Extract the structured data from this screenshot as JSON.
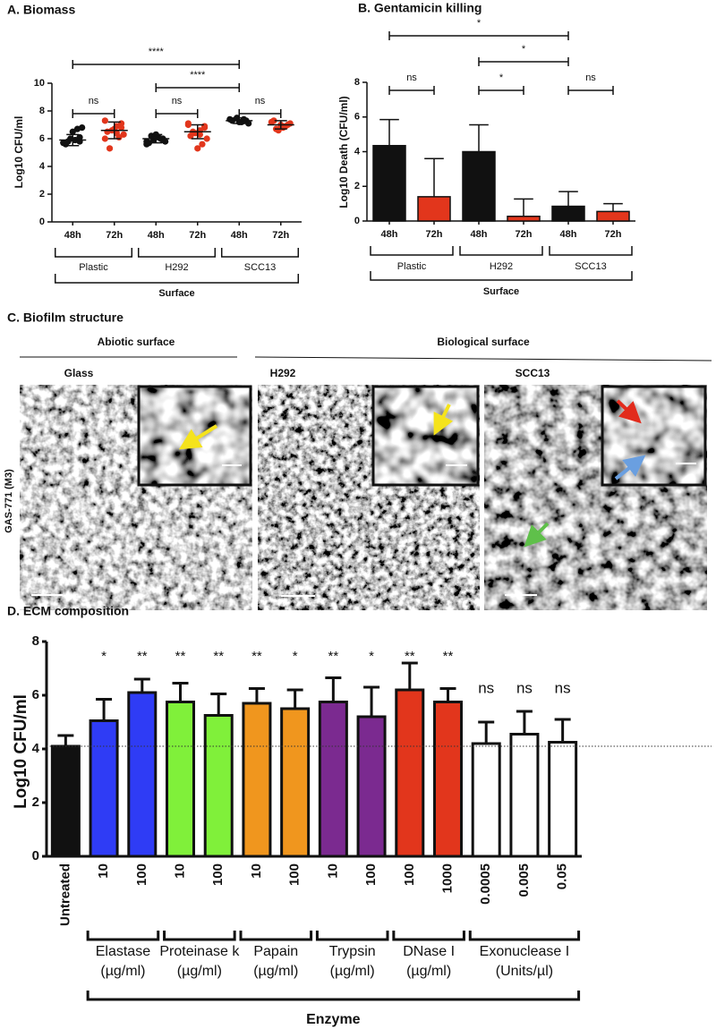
{
  "chart_data": [
    {
      "type": "dot",
      "title": "A. Biomass",
      "y_label": "Log10 CFU/ml",
      "categories": [
        "48h",
        "72h",
        "48h",
        "72h",
        "48h",
        "72h"
      ],
      "points": [
        [
          5.7,
          5.8,
          5.9,
          6.0,
          5.6,
          6.8,
          6.7,
          6.5,
          5.8,
          5.7,
          6.1,
          5.9
        ],
        [
          7.3,
          7.1,
          6.9,
          6.6,
          6.5,
          6.3,
          6.1,
          6.7,
          5.3,
          6.0,
          6.8,
          6.4
        ],
        [
          5.8,
          6.0,
          6.1,
          5.9,
          5.7,
          5.8,
          6.0,
          6.3,
          6.2,
          5.6,
          5.9
        ],
        [
          7.0,
          6.8,
          6.6,
          6.4,
          6.2,
          6.0,
          5.6,
          5.3,
          6.5,
          7.1,
          6.9,
          6.3
        ],
        [
          7.4,
          7.3,
          7.2,
          7.5,
          7.3,
          7.1,
          7.4,
          7.2
        ],
        [
          7.2,
          7.0,
          6.8,
          6.6,
          7.3,
          7.1,
          6.9,
          7.0,
          6.7
        ]
      ],
      "means": [
        5.9,
        6.6,
        6.0,
        6.5,
        7.3,
        7.0
      ],
      "sd": [
        0.4,
        0.6,
        0.3,
        0.5,
        0.2,
        0.3
      ],
      "colors": [
        "#111111",
        "#e2361c",
        "#111111",
        "#e2361c",
        "#111111",
        "#e2361c"
      ],
      "ylim": [
        0,
        10
      ],
      "yticks": [
        0,
        2,
        4,
        6,
        8,
        10
      ],
      "groups": [
        {
          "label": "Plastic",
          "from": 0,
          "to": 1
        },
        {
          "label": "H292",
          "from": 2,
          "to": 3
        },
        {
          "label": "SCC13",
          "from": 4,
          "to": 5
        }
      ],
      "group_label": "Surface",
      "comparisons": [
        {
          "from": 0,
          "to": 1,
          "label": "ns"
        },
        {
          "from": 2,
          "to": 3,
          "label": "ns"
        },
        {
          "from": 4,
          "to": 5,
          "label": "ns"
        },
        {
          "from": 2,
          "to": 4,
          "label": "****"
        },
        {
          "from": 0,
          "to": 4,
          "label": "****"
        }
      ]
    },
    {
      "type": "bar",
      "title": "B. Gentamicin killing",
      "y_label": "Log10 Death (CFU/ml)",
      "categories": [
        "48h",
        "72h",
        "48h",
        "72h",
        "48h",
        "72h"
      ],
      "values": [
        4.35,
        1.4,
        4.0,
        0.27,
        0.85,
        0.55
      ],
      "errors": [
        1.5,
        2.2,
        1.55,
        1.0,
        0.85,
        0.45
      ],
      "colors": [
        "#111111",
        "#e2361c",
        "#111111",
        "#e2361c",
        "#111111",
        "#e2361c"
      ],
      "ylim": [
        0,
        8
      ],
      "yticks": [
        0,
        2,
        4,
        6,
        8
      ],
      "groups": [
        {
          "label": "Plastic",
          "from": 0,
          "to": 1
        },
        {
          "label": "H292",
          "from": 2,
          "to": 3
        },
        {
          "label": "SCC13",
          "from": 4,
          "to": 5
        }
      ],
      "group_label": "Surface",
      "comparisons": [
        {
          "from": 0,
          "to": 1,
          "label": "ns"
        },
        {
          "from": 2,
          "to": 3,
          "label": "*"
        },
        {
          "from": 4,
          "to": 5,
          "label": "ns"
        },
        {
          "from": 2,
          "to": 4,
          "label": "*"
        },
        {
          "from": 0,
          "to": 4,
          "label": "*"
        }
      ]
    },
    {
      "type": "bar",
      "title": "D. ECM composition",
      "y_label": "Log10 CFU/ml",
      "categories": [
        "Untreated",
        "10",
        "100",
        "10",
        "100",
        "10",
        "100",
        "10",
        "100",
        "100",
        "1000",
        "0.0005",
        "0.005",
        "0.05"
      ],
      "values": [
        4.1,
        5.05,
        6.1,
        5.75,
        5.25,
        5.7,
        5.5,
        5.75,
        5.2,
        6.2,
        5.75,
        4.2,
        4.55,
        4.25
      ],
      "errors": [
        0.4,
        0.8,
        0.5,
        0.7,
        0.8,
        0.55,
        0.7,
        0.9,
        1.1,
        1.0,
        0.5,
        0.8,
        0.85,
        0.85
      ],
      "colors": [
        "#111111",
        "#2f3cf5",
        "#2f3cf5",
        "#80f03a",
        "#80f03a",
        "#f0961e",
        "#f0961e",
        "#7b2a90",
        "#7b2a90",
        "#e2361c",
        "#e2361c",
        "#ffffff",
        "#ffffff",
        "#ffffff"
      ],
      "significance": [
        null,
        "*",
        "**",
        "**",
        "**",
        "**",
        "*",
        "**",
        "*",
        "**",
        "**",
        "ns",
        "ns",
        "ns"
      ],
      "reference_line": true,
      "ylim": [
        0,
        8
      ],
      "yticks": [
        0,
        2,
        4,
        6,
        8
      ],
      "groups": [
        {
          "label": "Elastase",
          "unit": "(µg/ml)",
          "from": 1,
          "to": 2
        },
        {
          "label": "Proteinase k",
          "unit": "(µg/ml)",
          "from": 3,
          "to": 4
        },
        {
          "label": "Papain",
          "unit": "(µg/ml)",
          "from": 5,
          "to": 6
        },
        {
          "label": "Trypsin",
          "unit": "(µg/ml)",
          "from": 7,
          "to": 8
        },
        {
          "label": "DNase I",
          "unit": "(µg/ml)",
          "from": 9,
          "to": 10
        },
        {
          "label": "Exonuclease I",
          "unit": "(Units/µl)",
          "from": 11,
          "to": 13
        }
      ],
      "group_label": "Enzyme",
      "comparisons": []
    }
  ],
  "panel_c": {
    "title": "C. Biofilm structure",
    "headers": [
      "Abiotic surface",
      "Biological surface"
    ],
    "columns": [
      "Glass",
      "H292",
      "SCC13"
    ],
    "row_label": "GAS-771 (M3)"
  }
}
